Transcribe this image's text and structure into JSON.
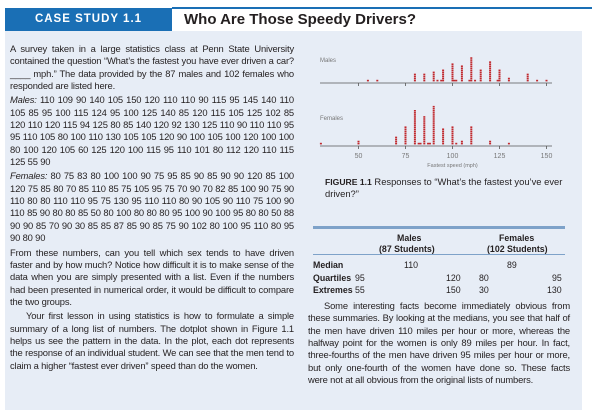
{
  "header": {
    "badge": "CASE STUDY 1.1",
    "title": "Who Are Those Speedy Drivers?"
  },
  "intro": {
    "p1": "A survey taken in a large statistics class at Penn State University contained the question “What’s the fastest you have ever driven a car? ____ mph.” The data provided by the 87 males and 102 females who responded are listed here."
  },
  "males_label": "Males:",
  "males_data": "110 109 90 140 105 150 120 110 110 90 115 95 145 140 110 105 85 95 100 115 124 95 100 125 140 85 120 115 105 125 102 85 120 110 120 115 94 125 80 85 140 120 92 130 125 110 90 110 110 95 95 110 105 80 100 110 130 105 105 120 90 100 105 100 120 100 100 80 100 120 105 60 125 120 100 115 95 110 101 80 112 120 110 115 125 55 90",
  "females_label": "Females:",
  "females_data": "80 75 83 80 100 100 90 75 95 85 90 85 90 90 120 85 100 120 75 85 80 70 85 110 85 75 105 95 75 70 90 70 82 85 100 90 75 90 110 80 80 110 110 95 75 130 95 110 110 80 90 105 90 110 75 100 90 110 85 90 80 80 85 50 80 100 80 80 80 95 100 90 100 95 80 80 50 88 90 90 85 70 90 30 85 85 87 85 90 85 75 90 102 80 100 95 110 80 95 90 80 90",
  "para2": "From these numbers, can you tell which sex tends to have driven faster and by how much? Notice how difficult it is to make sense of the data when you are simply presented with a list. Even if the numbers had been presented in numerical order, it would be difficult to compare the two groups.",
  "para3": "Your first lesson in using statistics is how to formulate a simple summary of a long list of numbers. The dotplot shown in Figure 1.1 helps us see the pattern in the data. In the plot, each dot represents the response of an individual student. We can see that the men tend to claim a higher “fastest ever driven” speed than do the women.",
  "figure": {
    "label": "FIGURE 1.1",
    "caption": "Responses to “What’s the fastest you’ve ever driven?”"
  },
  "chart_data": {
    "type": "scatter",
    "subtype": "dotplot",
    "series": [
      {
        "name": "Males"
      },
      {
        "name": "Females"
      }
    ],
    "xlabel": "Fastest speed (mph)",
    "xticks": [
      "50",
      "75",
      "100",
      "125",
      "150"
    ],
    "xlim": [
      30,
      150
    ]
  },
  "summary": {
    "cols": [
      {
        "name": "Males",
        "n": "(87 Students)"
      },
      {
        "name": "Females",
        "n": "(102 Students)"
      }
    ],
    "rows": [
      {
        "label": "Median",
        "m": "110",
        "f": "89"
      },
      {
        "label": "Quartiles",
        "m1": "95",
        "m2": "120",
        "f1": "80",
        "f2": "95"
      },
      {
        "label": "Extremes",
        "m1": "55",
        "m2": "150",
        "f1": "30",
        "f2": "130"
      }
    ]
  },
  "para4": "Some interesting facts become immediately obvious from these summaries. By looking at the medians, you see that half of the men have driven 110 miles per hour or more, whereas the halfway point for the women is only 89 miles per hour. In fact, three-fourths of the men have driven 95 miles per hour or more, but only one-fourth of the women have done so. These facts were not at all obvious from the original lists of numbers.",
  "colors": {
    "accent": "#1a6fb5",
    "panel": "#e7edf6",
    "dot": "#c0282d"
  }
}
